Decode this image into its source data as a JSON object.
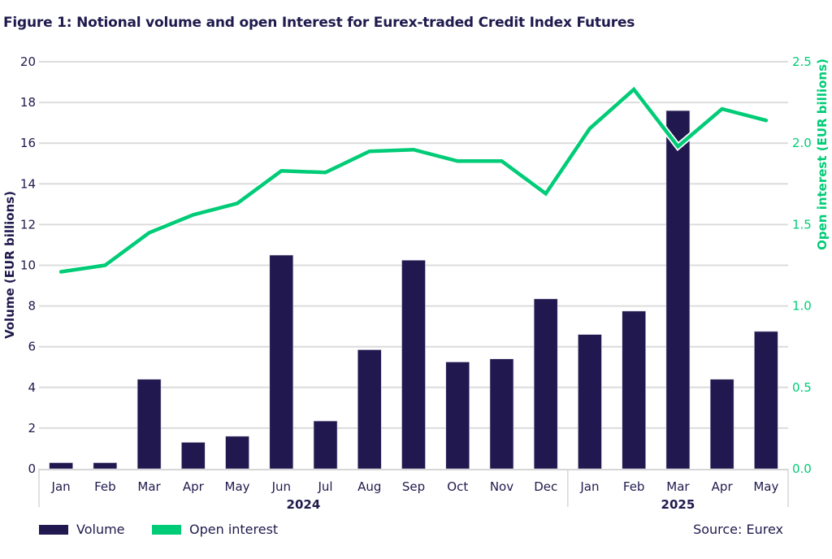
{
  "chart_data": {
    "type": "bar+line",
    "title": "Figure 1: Notional volume and open Interest for Eurex-traded Credit Index Futures",
    "categories": [
      "Jan",
      "Feb",
      "Mar",
      "Apr",
      "May",
      "Jun",
      "Jul",
      "Aug",
      "Sep",
      "Oct",
      "Nov",
      "Dec",
      "Jan",
      "Feb",
      "Mar",
      "Apr",
      "May"
    ],
    "year_groups": [
      {
        "label": "2024",
        "count": 12
      },
      {
        "label": "2025",
        "count": 5
      }
    ],
    "series": [
      {
        "name": "Volume",
        "type": "bar",
        "axis": "left",
        "color": "#20184e",
        "values": [
          0.3,
          0.3,
          4.4,
          1.3,
          1.6,
          10.5,
          2.35,
          5.85,
          10.25,
          5.25,
          5.4,
          8.35,
          6.6,
          7.75,
          17.6,
          4.4,
          6.75
        ]
      },
      {
        "name": "Open interest",
        "type": "line",
        "axis": "right",
        "color": "#00cc77",
        "values": [
          1.21,
          1.25,
          1.45,
          1.56,
          1.63,
          1.83,
          1.82,
          1.95,
          1.96,
          1.89,
          1.89,
          1.69,
          2.09,
          2.33,
          1.98,
          2.21,
          2.14
        ]
      }
    ],
    "ylabel": "Volume (EUR billions)",
    "ylim": [
      0,
      20
    ],
    "yticks": [
      "0",
      "2",
      "4",
      "6",
      "8",
      "10",
      "12",
      "14",
      "16",
      "18",
      "20"
    ],
    "y2label": "Open interest (EUR billions)",
    "y2lim": [
      0,
      2.5
    ],
    "y2ticks": [
      "0.0",
      "0.5",
      "1.0",
      "1.5",
      "2.0",
      "2.5"
    ],
    "grid": true,
    "legend_position": "bottom-left",
    "source": "Source: Eurex"
  }
}
